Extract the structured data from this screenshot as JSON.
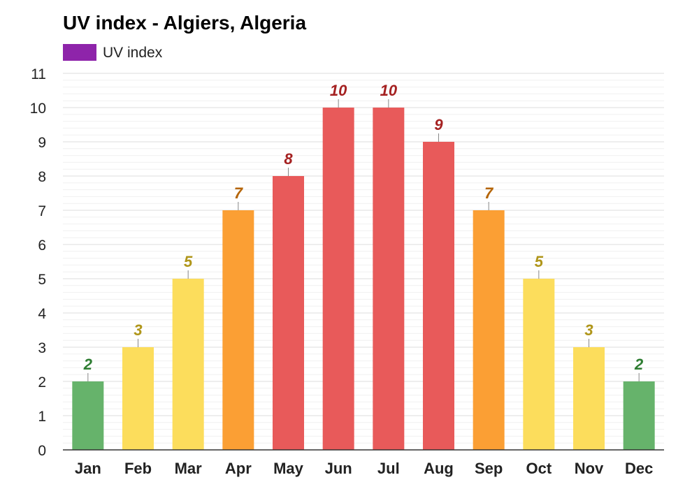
{
  "chart_data": {
    "type": "bar",
    "title": "UV index - Algiers, Algeria",
    "xlabel": "",
    "ylabel": "",
    "legend": {
      "position": "top-left",
      "entries": [
        {
          "name": "UV index",
          "color": "#8e24aa"
        }
      ]
    },
    "categories": [
      "Jan",
      "Feb",
      "Mar",
      "Apr",
      "May",
      "Jun",
      "Jul",
      "Aug",
      "Sep",
      "Oct",
      "Nov",
      "Dec"
    ],
    "series": [
      {
        "name": "UV index",
        "values": [
          2,
          3,
          5,
          7,
          8,
          10,
          10,
          9,
          7,
          5,
          3,
          2
        ]
      }
    ],
    "ylim": [
      0,
      11
    ],
    "yticks": [
      0,
      1,
      2,
      3,
      4,
      5,
      6,
      7,
      8,
      9,
      10,
      11
    ],
    "grid": true,
    "data_labels": true,
    "color_levels": [
      {
        "max": 2,
        "bar_color": "#66b36b",
        "label_color": "#2e7d32"
      },
      {
        "max": 5,
        "bar_color": "#fcdd5c",
        "label_color": "#b0961a"
      },
      {
        "max": 7,
        "bar_color": "#fb9f34",
        "label_color": "#b56508"
      },
      {
        "max": 10,
        "bar_color": "#e85a5a",
        "label_color": "#a52121"
      },
      {
        "max": 99,
        "bar_color": "#9c27b0",
        "label_color": "#6a1b9a"
      }
    ],
    "colors": {
      "axis": "#333333",
      "grid_major": "#dddddd",
      "grid_minor": "#f0f0f0",
      "label_tick": "#888888"
    }
  }
}
